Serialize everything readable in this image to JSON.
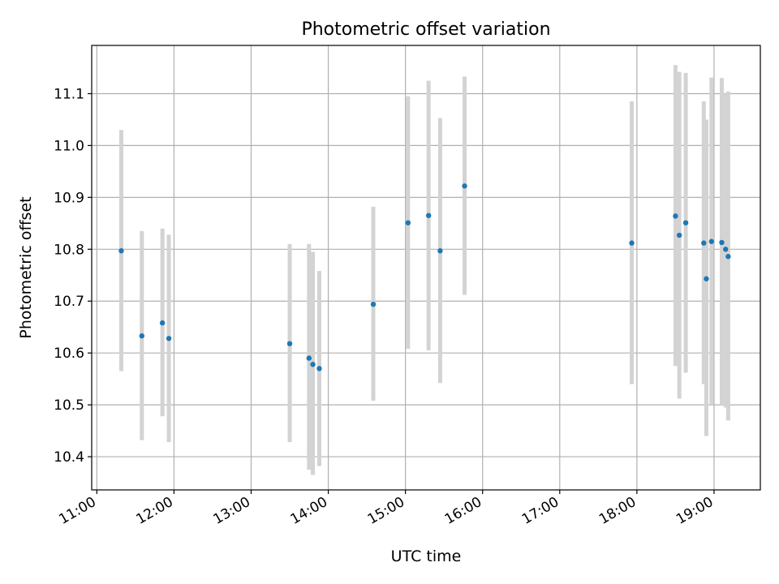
{
  "chart_data": {
    "type": "scatter",
    "title": "Photometric offset variation",
    "xlabel": "UTC time",
    "ylabel": "Photometric offset",
    "x_ticks": [
      "11:00",
      "12:00",
      "13:00",
      "14:00",
      "15:00",
      "16:00",
      "17:00",
      "18:00",
      "19:00"
    ],
    "y_ticks": [
      "10.4",
      "10.5",
      "10.6",
      "10.7",
      "10.8",
      "10.9",
      "11.0",
      "11.1"
    ],
    "xlim": [
      "10:56",
      "19:36"
    ],
    "ylim": [
      10.336,
      11.193
    ],
    "grid": true,
    "colors": {
      "point": "#1f77b4",
      "errorbar": "#d3d3d3",
      "grid": "#b0b0b0"
    },
    "series": [
      {
        "points": [
          {
            "x": "11:19",
            "y": 10.797,
            "ylow": 10.565,
            "yhigh": 11.03
          },
          {
            "x": "11:35",
            "y": 10.633,
            "ylow": 10.432,
            "yhigh": 10.835
          },
          {
            "x": "11:51",
            "y": 10.658,
            "ylow": 10.478,
            "yhigh": 10.84
          },
          {
            "x": "11:56",
            "y": 10.628,
            "ylow": 10.428,
            "yhigh": 10.828
          },
          {
            "x": "13:30",
            "y": 10.618,
            "ylow": 10.428,
            "yhigh": 10.81
          },
          {
            "x": "13:45",
            "y": 10.59,
            "ylow": 10.375,
            "yhigh": 10.81
          },
          {
            "x": "13:48",
            "y": 10.578,
            "ylow": 10.365,
            "yhigh": 10.795
          },
          {
            "x": "13:53",
            "y": 10.57,
            "ylow": 10.382,
            "yhigh": 10.758
          },
          {
            "x": "14:35",
            "y": 10.694,
            "ylow": 10.508,
            "yhigh": 10.882
          },
          {
            "x": "15:02",
            "y": 10.851,
            "ylow": 10.608,
            "yhigh": 11.095
          },
          {
            "x": "15:18",
            "y": 10.865,
            "ylow": 10.605,
            "yhigh": 11.125
          },
          {
            "x": "15:27",
            "y": 10.797,
            "ylow": 10.542,
            "yhigh": 11.053
          },
          {
            "x": "15:46",
            "y": 10.922,
            "ylow": 10.712,
            "yhigh": 11.133
          },
          {
            "x": "17:56",
            "y": 10.812,
            "ylow": 10.54,
            "yhigh": 11.085
          },
          {
            "x": "18:30",
            "y": 10.864,
            "ylow": 10.575,
            "yhigh": 11.155
          },
          {
            "x": "18:33",
            "y": 10.827,
            "ylow": 10.512,
            "yhigh": 11.142
          },
          {
            "x": "18:38",
            "y": 10.851,
            "ylow": 10.562,
            "yhigh": 11.14
          },
          {
            "x": "18:52",
            "y": 10.812,
            "ylow": 10.54,
            "yhigh": 11.085
          },
          {
            "x": "18:54",
            "y": 10.743,
            "ylow": 10.44,
            "yhigh": 11.05
          },
          {
            "x": "18:58",
            "y": 10.815,
            "ylow": 10.5,
            "yhigh": 11.131
          },
          {
            "x": "19:06",
            "y": 10.813,
            "ylow": 10.5,
            "yhigh": 11.13
          },
          {
            "x": "19:09",
            "y": 10.8,
            "ylow": 10.495,
            "yhigh": 11.1
          },
          {
            "x": "19:11",
            "y": 10.786,
            "ylow": 10.47,
            "yhigh": 11.104
          }
        ]
      }
    ]
  }
}
